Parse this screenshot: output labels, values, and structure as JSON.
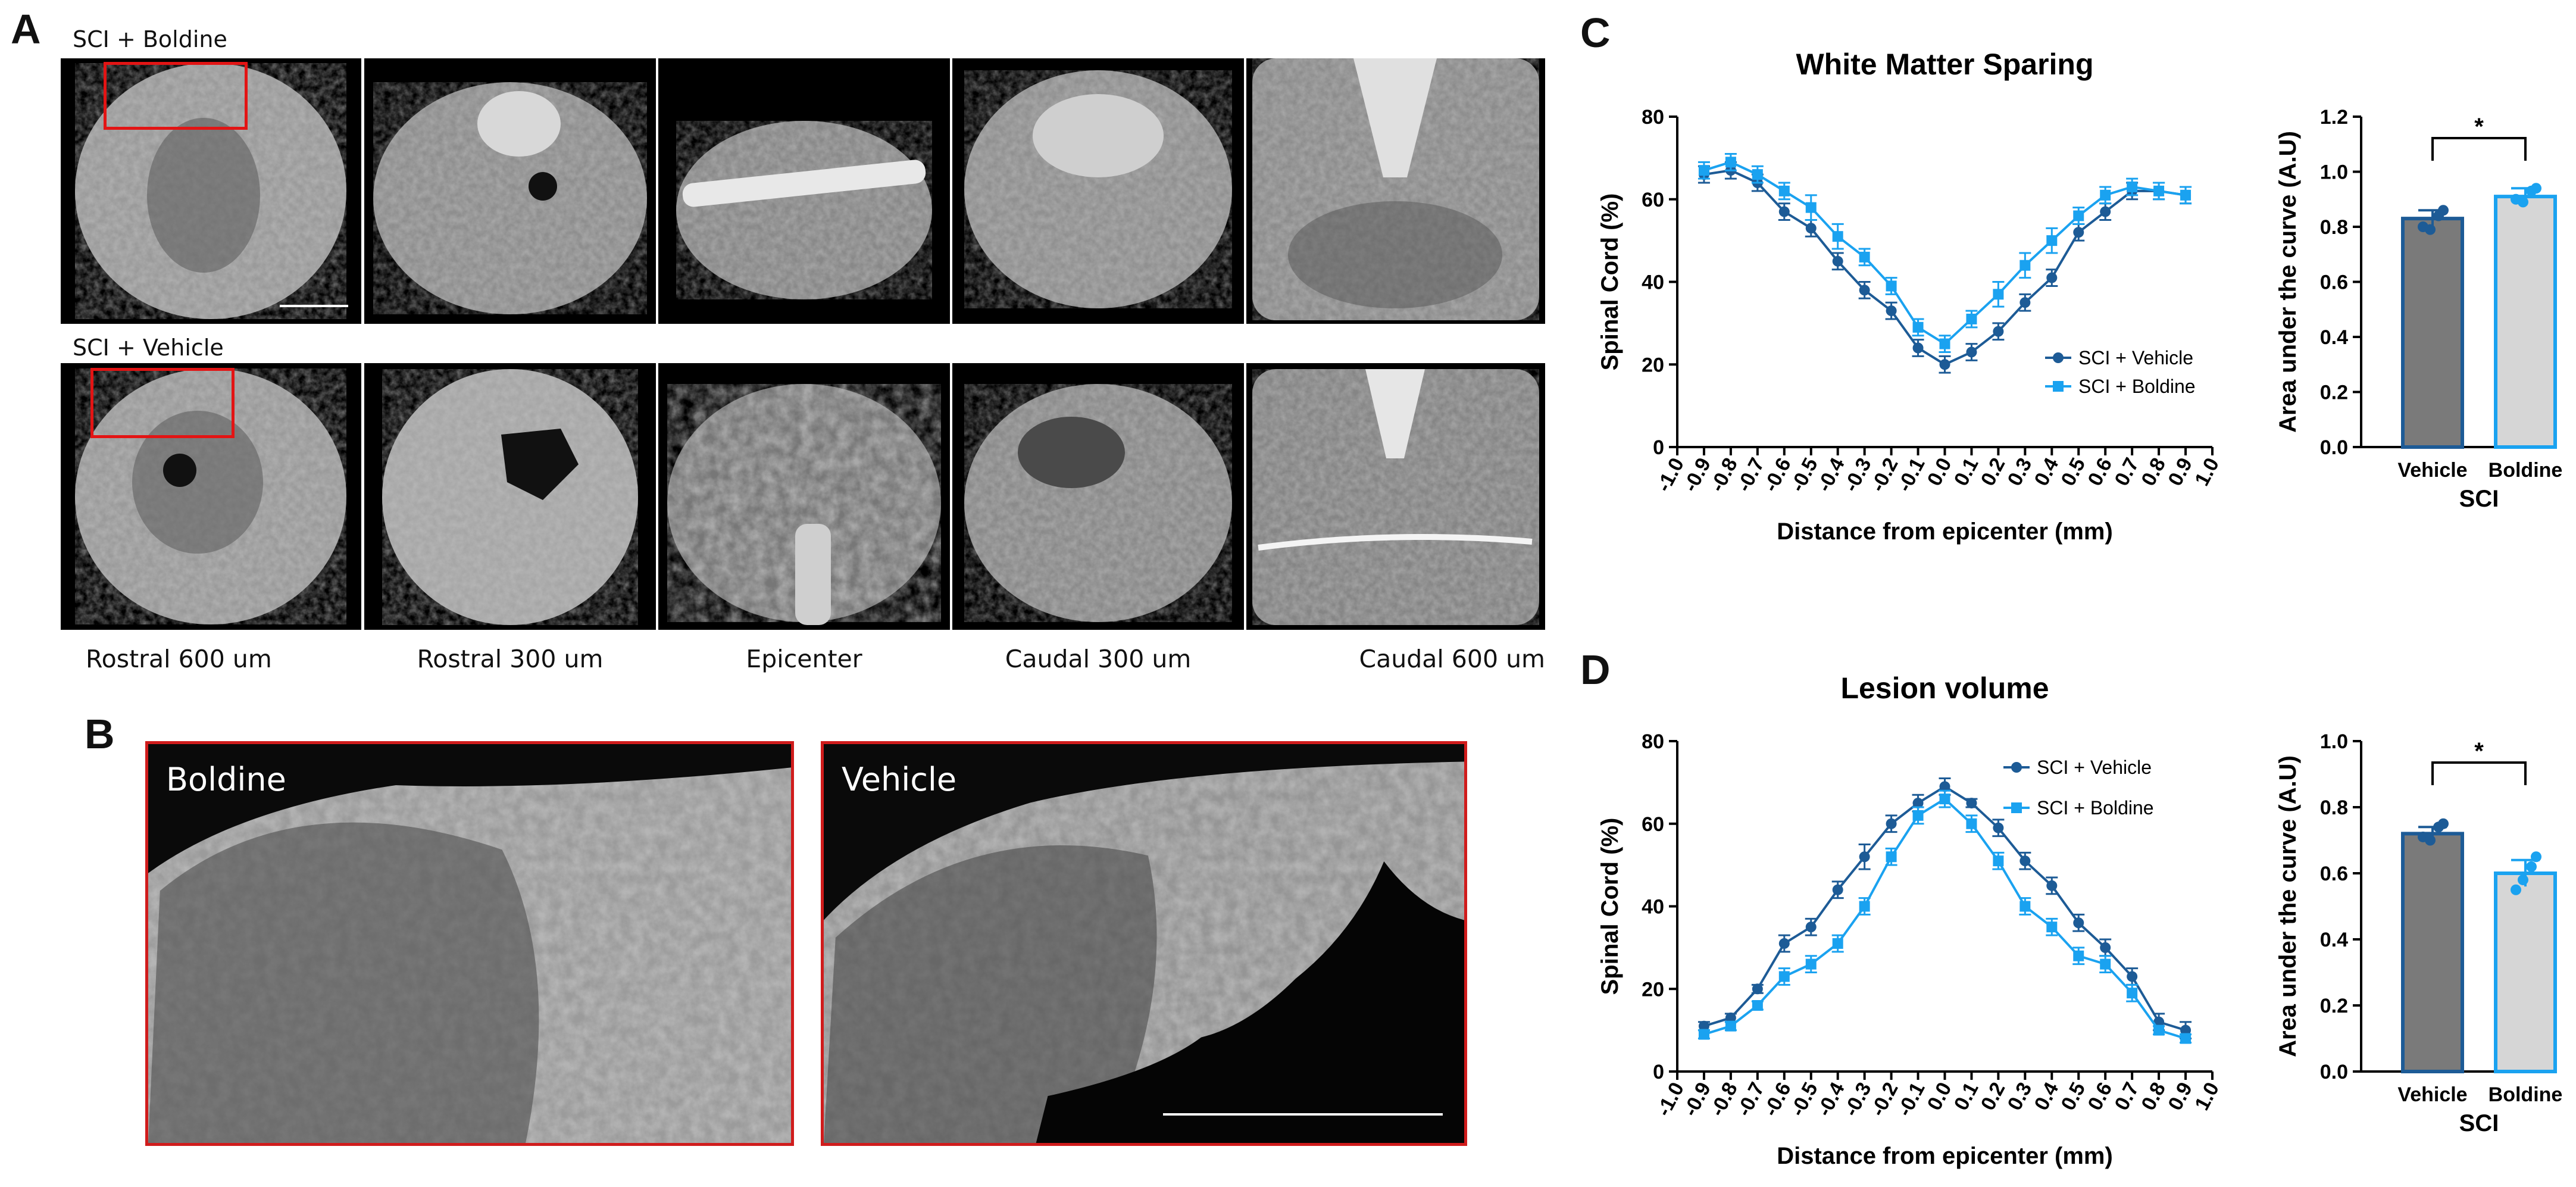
{
  "panels": {
    "A": {
      "letter": "A",
      "row1_label": "SCI + Boldine",
      "row2_label": "SCI + Vehicle",
      "columns": [
        "Rostral 600 um",
        "Rostral 300 um",
        "Epicenter",
        "Caudal 300 um",
        "Caudal 600 um"
      ]
    },
    "B": {
      "letter": "B",
      "left_label": "Boldine",
      "right_label": "Vehicle"
    },
    "C": {
      "letter": "C"
    },
    "D": {
      "letter": "D"
    }
  },
  "colors": {
    "vehicle": "#1d5b96",
    "boldine": "#1aa2f0",
    "vehicle_bar": "#7a7a7a",
    "boldine_bar": "#d6d6d6",
    "box": "#e31414"
  },
  "chart_data": [
    {
      "id": "C-line",
      "type": "line",
      "title": "White Matter Sparing",
      "xlabel": "Distance from epicenter (mm)",
      "ylabel": "Spinal  Cord (%)",
      "xlim": [
        -1.0,
        1.0
      ],
      "ylim": [
        0,
        80
      ],
      "grid": false,
      "legend": "bottom-right",
      "x_ticks": [
        "-1.0",
        "-0.9",
        "-0.8",
        "-0.7",
        "-0.6",
        "-0.5",
        "-0.4",
        "-0.3",
        "-0.2",
        "-0.1",
        "0.0",
        "0.1",
        "0.2",
        "0.3",
        "0.4",
        "0.5",
        "0.6",
        "0.7",
        "0.8",
        "0.9",
        "1.0"
      ],
      "y_ticks": [
        "0",
        "20",
        "40",
        "60",
        "80"
      ],
      "x": [
        -0.9,
        -0.8,
        -0.7,
        -0.6,
        -0.5,
        -0.4,
        -0.3,
        -0.2,
        -0.1,
        0.0,
        0.1,
        0.2,
        0.3,
        0.4,
        0.5,
        0.6,
        0.7,
        0.8,
        0.9
      ],
      "series": [
        {
          "name": "SCI + Vehicle",
          "values": [
            66,
            67,
            64,
            57,
            53,
            45,
            38,
            33,
            24,
            20,
            23,
            28,
            35,
            41,
            52,
            57,
            62,
            62,
            61
          ],
          "err": [
            2,
            2,
            2,
            2,
            2,
            2,
            2,
            2,
            2,
            2,
            2,
            2,
            2,
            2,
            2,
            2,
            2,
            2,
            2
          ]
        },
        {
          "name": "SCI + Boldine",
          "values": [
            67,
            69,
            66,
            62,
            58,
            51,
            46,
            39,
            29,
            25,
            31,
            37,
            44,
            50,
            56,
            61,
            63,
            62,
            61
          ],
          "err": [
            2,
            2,
            2,
            2,
            3,
            3,
            2,
            2,
            2,
            2,
            2,
            3,
            3,
            3,
            2,
            2,
            2,
            2,
            2
          ]
        }
      ]
    },
    {
      "id": "C-bar",
      "type": "bar",
      "xlabel": "SCI",
      "ylabel": "Area  under the curve (A.U)",
      "categories": [
        "Vehicle",
        "Boldine"
      ],
      "values": [
        0.83,
        0.91
      ],
      "err": [
        0.03,
        0.03
      ],
      "points": [
        [
          0.8,
          0.84,
          0.86,
          0.79
        ],
        [
          0.9,
          0.93,
          0.94,
          0.89
        ]
      ],
      "ylim": [
        0,
        1.2
      ],
      "y_ticks": [
        "0.0",
        "0.2",
        "0.4",
        "0.6",
        "0.8",
        "1.0",
        "1.2"
      ],
      "significance": "*"
    },
    {
      "id": "D-line",
      "type": "line",
      "title": "Lesion volume",
      "xlabel": "Distance from epicenter (mm)",
      "ylabel": "Spinal  Cord (%)",
      "xlim": [
        -1.0,
        1.0
      ],
      "ylim": [
        0,
        80
      ],
      "grid": false,
      "legend": "top-right",
      "x_ticks": [
        "-1.0",
        "-0.9",
        "-0.8",
        "-0.7",
        "-0.6",
        "-0.5",
        "-0.4",
        "-0.3",
        "-0.2",
        "-0.1",
        "0.0",
        "0.1",
        "0.2",
        "0.3",
        "0.4",
        "0.5",
        "0.6",
        "0.7",
        "0.8",
        "0.9",
        "1.0"
      ],
      "y_ticks": [
        "0",
        "20",
        "40",
        "60",
        "80"
      ],
      "x": [
        -0.9,
        -0.8,
        -0.7,
        -0.6,
        -0.5,
        -0.4,
        -0.3,
        -0.2,
        -0.1,
        0.0,
        0.1,
        0.2,
        0.3,
        0.4,
        0.5,
        0.6,
        0.7,
        0.8,
        0.9
      ],
      "series": [
        {
          "name": "SCI + Vehicle",
          "values": [
            11,
            13,
            20,
            31,
            35,
            44,
            52,
            60,
            65,
            69,
            65,
            59,
            51,
            45,
            36,
            30,
            23,
            12,
            10
          ],
          "err": [
            1,
            1,
            1,
            2,
            2,
            2,
            3,
            2,
            2,
            2,
            1,
            2,
            2,
            2,
            2,
            2,
            2,
            2,
            2
          ]
        },
        {
          "name": "SCI + Boldine",
          "values": [
            9,
            11,
            16,
            23,
            26,
            31,
            40,
            52,
            62,
            66,
            60,
            51,
            40,
            35,
            28,
            26,
            19,
            10,
            8
          ],
          "err": [
            1,
            1,
            1,
            2,
            2,
            2,
            2,
            2,
            2,
            2,
            2,
            2,
            2,
            2,
            2,
            2,
            2,
            1,
            1
          ]
        }
      ]
    },
    {
      "id": "D-bar",
      "type": "bar",
      "xlabel": "SCI",
      "ylabel": "Area  under the curve (A.U)",
      "categories": [
        "Vehicle",
        "Boldine"
      ],
      "values": [
        0.72,
        0.6
      ],
      "err": [
        0.02,
        0.04
      ],
      "points": [
        [
          0.71,
          0.74,
          0.75,
          0.7
        ],
        [
          0.55,
          0.62,
          0.65,
          0.58
        ]
      ],
      "ylim": [
        0,
        1.0
      ],
      "y_ticks": [
        "0.0",
        "0.2",
        "0.4",
        "0.6",
        "0.8",
        "1.0"
      ],
      "significance": "*"
    }
  ]
}
